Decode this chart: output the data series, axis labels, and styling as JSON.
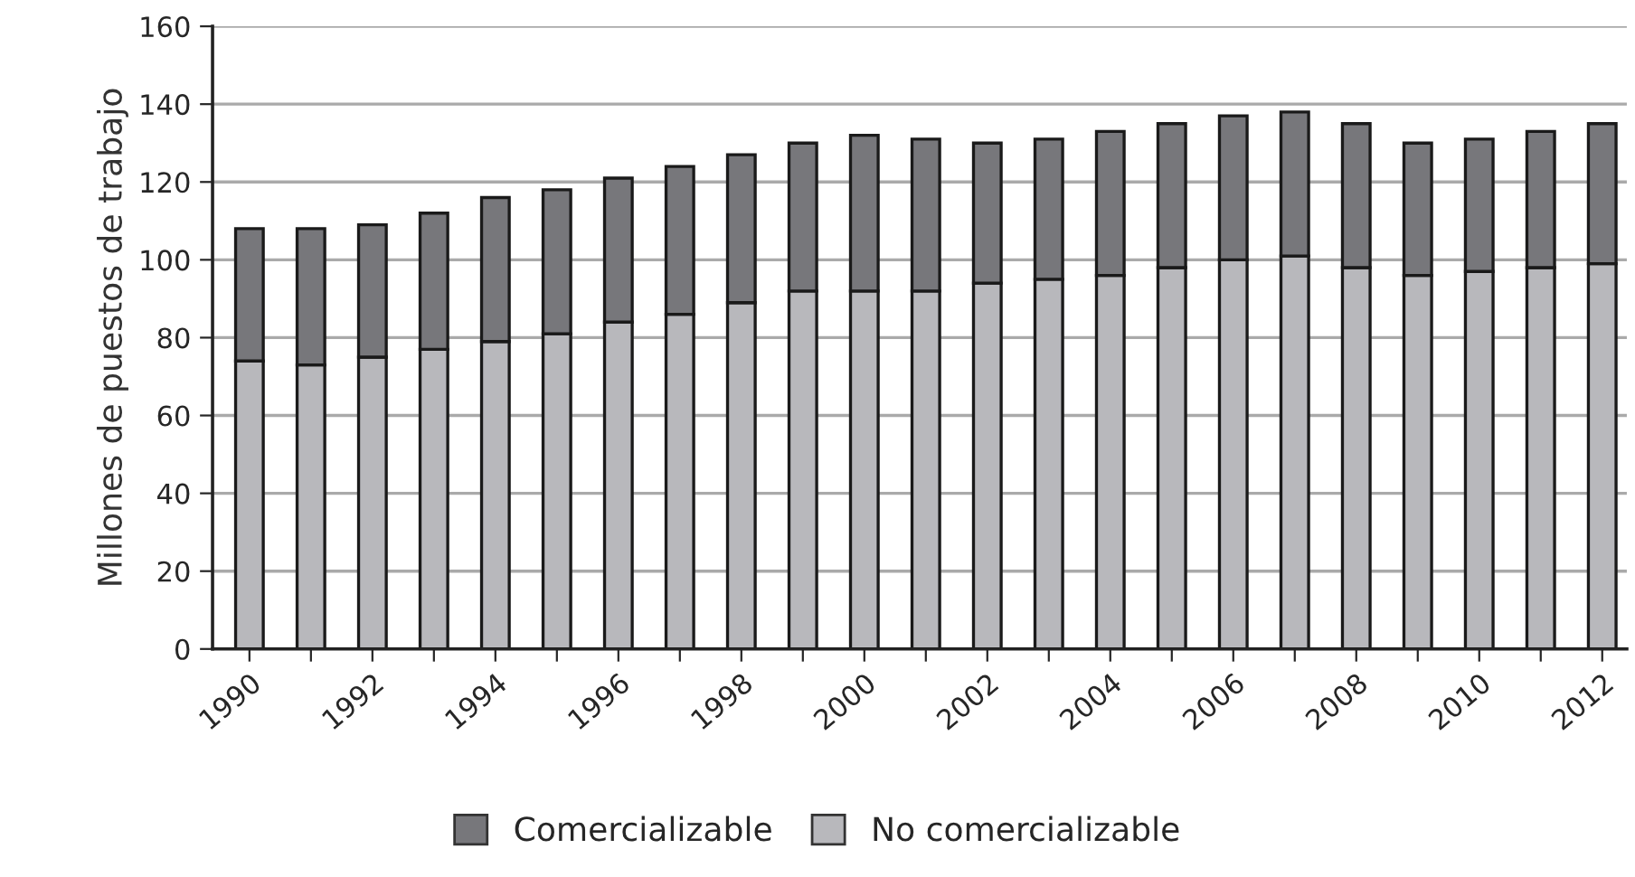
{
  "chart_data": {
    "type": "bar",
    "stacked": true,
    "ylabel": "Millones de puestos de trabajo",
    "categories": [
      "1990",
      null,
      "1992",
      null,
      "1994",
      null,
      "1996",
      null,
      "1998",
      null,
      "2000",
      null,
      "2002",
      null,
      "2004",
      null,
      "2006",
      null,
      "2008",
      null,
      "2010",
      null,
      "2012"
    ],
    "series": [
      {
        "name": "No comercializable",
        "color": "#b8b8bc",
        "values": [
          74,
          73,
          75,
          77,
          79,
          81,
          84,
          86,
          89,
          92,
          92,
          92,
          94,
          95,
          96,
          98,
          100,
          101,
          98,
          96,
          97,
          98,
          99
        ]
      },
      {
        "name": "Comercializable",
        "color": "#77777b",
        "values": [
          34,
          35,
          34,
          35,
          37,
          37,
          37,
          38,
          38,
          38,
          40,
          39,
          36,
          36,
          37,
          37,
          37,
          37,
          37,
          34,
          34,
          35,
          36
        ]
      }
    ],
    "ylim": [
      0,
      160
    ],
    "yticks": [
      0,
      20,
      40,
      60,
      80,
      100,
      120,
      140,
      160
    ],
    "grid": "y",
    "legend": "bottom"
  }
}
